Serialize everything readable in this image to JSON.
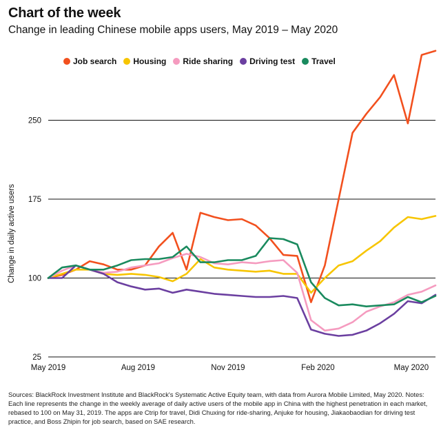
{
  "header": {
    "title": "Chart of the week",
    "subtitle": "Change in leading Chinese mobile apps users, May 2019 – May 2020"
  },
  "footer": {
    "source": "Sources: BlackRock Investment Institute and BlackRock's Systematic Active Equity team, with data from Aurora Mobile Limited, May 2020. Notes: Each line represents the change in the weekly average of daily active users of the mobile app in China with the highest penetration in each market, rebased to 100 on May 31, 2019. The apps are Ctrip for travel, Didi Chuxing for ride-sharing, Anjuke for housing, Jiakaobaodian for driving test practice, and Boss Zhipin for job search, based on SAE research."
  },
  "chart_data": {
    "type": "line",
    "title": "Chart of the week",
    "subtitle": "Change in leading Chinese mobile apps users, May 2019 – May 2020",
    "xlabel": "",
    "ylabel": "Change in daily active users",
    "x": [
      0,
      2,
      4,
      6,
      8,
      10,
      12,
      14,
      16,
      18,
      20,
      22,
      24,
      26,
      28,
      30,
      32,
      34,
      36,
      38,
      40,
      42,
      44,
      46,
      48,
      50,
      52,
      54,
      56
    ],
    "xlim": [
      0,
      56
    ],
    "ylim": [
      25,
      325
    ],
    "yticks": [
      25,
      100,
      175,
      250
    ],
    "xticks": [
      {
        "pos": 0,
        "label": "May 2019"
      },
      {
        "pos": 13,
        "label": "Aug 2019"
      },
      {
        "pos": 26,
        "label": "Nov 2019"
      },
      {
        "pos": 39,
        "label": "Feb 2020"
      },
      {
        "pos": 52.5,
        "label": "May 2020"
      }
    ],
    "grid": true,
    "legend_position": "top",
    "series": [
      {
        "name": "Job search",
        "color": "#F2501E",
        "values": [
          100,
          103,
          108,
          116,
          113,
          108,
          108,
          112,
          130,
          143,
          108,
          162,
          158,
          155,
          156,
          150,
          138,
          122,
          121,
          77,
          112,
          175,
          238,
          256,
          272,
          293,
          247,
          312,
          316
        ]
      },
      {
        "name": "Housing",
        "color": "#F7C500",
        "values": [
          100,
          104,
          108,
          108,
          104,
          103,
          104,
          103,
          101,
          97,
          104,
          118,
          110,
          108,
          107,
          106,
          107,
          104,
          104,
          86,
          100,
          112,
          116,
          126,
          135,
          148,
          158,
          156,
          159
        ]
      },
      {
        "name": "Ride sharing",
        "color": "#F59BBF",
        "values": [
          100,
          107,
          112,
          108,
          105,
          106,
          110,
          112,
          114,
          119,
          123,
          120,
          114,
          113,
          115,
          114,
          116,
          117,
          105,
          60,
          50,
          52,
          58,
          68,
          73,
          77,
          84,
          87,
          93
        ]
      },
      {
        "name": "Driving test",
        "color": "#6B3FA0",
        "values": [
          100,
          100,
          112,
          108,
          104,
          96,
          92,
          89,
          90,
          86,
          89,
          87,
          85,
          84,
          83,
          82,
          82,
          83,
          81,
          51,
          47,
          45,
          46,
          50,
          57,
          66,
          78,
          76,
          84
        ]
      },
      {
        "name": "Travel",
        "color": "#1A8A5E",
        "values": [
          100,
          110,
          112,
          108,
          108,
          112,
          117,
          118,
          118,
          120,
          130,
          115,
          115,
          117,
          117,
          121,
          138,
          137,
          132,
          96,
          81,
          74,
          75,
          73,
          74,
          75,
          82,
          77,
          83
        ]
      }
    ]
  }
}
